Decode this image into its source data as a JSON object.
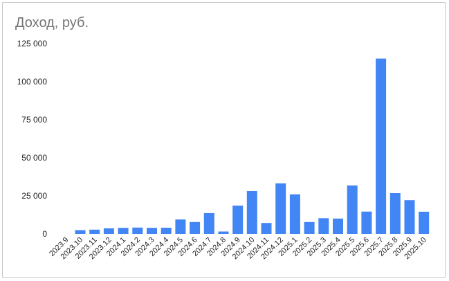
{
  "chart_data": {
    "type": "bar",
    "title": "Доход, руб.",
    "xlabel": "",
    "ylabel": "",
    "ylim": [
      0,
      125000
    ],
    "yticks": [
      0,
      25000,
      50000,
      75000,
      100000,
      125000
    ],
    "ytick_labels": [
      "0",
      "25 000",
      "50 000",
      "75 000",
      "100 000",
      "125 000"
    ],
    "grid": false,
    "legend": "none",
    "bar_color": "#4285f4",
    "categories": [
      "2023.9",
      "2023.10",
      "2023.11",
      "2023.12",
      "2024.1",
      "2024.2",
      "2024.3",
      "2024.4",
      "2024.5",
      "2024.6",
      "2024.7",
      "2024.8",
      "2024.9",
      "2024.10",
      "2024.11",
      "2024.12",
      "2025.1",
      "2025.2",
      "2025.3",
      "2025.4",
      "2025.5",
      "2025.6",
      "2025.7",
      "2025.8",
      "2025.9",
      "2025.10"
    ],
    "values": [
      0,
      2500,
      2800,
      3700,
      4000,
      4200,
      4000,
      4100,
      9500,
      7800,
      13700,
      1600,
      18600,
      28200,
      7200,
      33200,
      26000,
      7800,
      10300,
      10100,
      31800,
      14700,
      115200,
      26800,
      22200,
      14600
    ]
  }
}
